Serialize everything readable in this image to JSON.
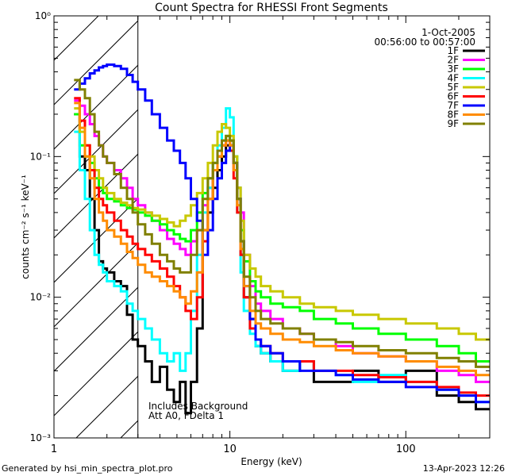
{
  "chart_data": {
    "type": "line",
    "title": "Count Spectra for RHESSI Front Segments",
    "xlabel": "Energy (keV)",
    "ylabel": "counts cm⁻² s⁻¹ keV⁻¹",
    "xscale": "log",
    "yscale": "log",
    "xlim": [
      1.0,
      300.0
    ],
    "ylim": [
      0.001,
      1.0
    ],
    "x_ticks": [
      "1",
      "10",
      "100"
    ],
    "y_ticks": [
      "10⁻³",
      "10⁻²",
      "10⁻¹",
      "10⁰"
    ],
    "legend_position": "top-right",
    "info_date": "1-Oct-2005",
    "info_time": "00:56:00 to 00:57:00",
    "annotation_line1": "Includes Background",
    "annotation_line2": "Att A0, FDelta 1",
    "hatched_region_upper_keV": 3.0,
    "footer_left": "Generated by hsi_min_spectra_plot.pro",
    "footer_right": "13-Apr-2023 12:26",
    "energy_keV": [
      1.3,
      1.4,
      1.5,
      1.6,
      1.7,
      1.8,
      1.9,
      2.0,
      2.2,
      2.4,
      2.6,
      2.8,
      3.0,
      3.3,
      3.6,
      4.0,
      4.4,
      4.8,
      5.2,
      5.6,
      6.0,
      6.5,
      7.0,
      7.5,
      8.0,
      8.5,
      9.0,
      9.5,
      10.0,
      10.5,
      11.0,
      11.5,
      12.0,
      13.0,
      14.0,
      15.0,
      17.0,
      20.0,
      25.0,
      30.0,
      40.0,
      50.0,
      70.0,
      100.0,
      150.0,
      200.0,
      250.0
    ],
    "series": [
      {
        "name": "1F",
        "color": "#000000",
        "values": [
          0.2,
          0.1,
          0.08,
          0.05,
          0.03,
          0.018,
          0.016,
          0.015,
          0.013,
          0.012,
          0.0075,
          0.005,
          0.0045,
          0.0035,
          0.0025,
          0.0032,
          0.0022,
          0.0018,
          0.0025,
          0.0015,
          0.0025,
          0.006,
          0.03,
          0.04,
          0.06,
          0.08,
          0.1,
          0.12,
          0.13,
          0.09,
          0.05,
          0.02,
          0.01,
          0.007,
          0.0045,
          0.004,
          0.0035,
          0.003,
          0.0035,
          0.0025,
          0.0025,
          0.003,
          0.0025,
          0.003,
          0.002,
          0.0018,
          0.0016
        ]
      },
      {
        "name": "2F",
        "color": "#ff00ff",
        "values": [
          0.25,
          0.23,
          0.2,
          0.17,
          0.14,
          0.12,
          0.1,
          0.09,
          0.08,
          0.07,
          0.06,
          0.05,
          0.045,
          0.04,
          0.035,
          0.03,
          0.026,
          0.024,
          0.022,
          0.02,
          0.025,
          0.03,
          0.045,
          0.06,
          0.08,
          0.1,
          0.12,
          0.13,
          0.12,
          0.09,
          0.06,
          0.04,
          0.02,
          0.012,
          0.009,
          0.008,
          0.007,
          0.006,
          0.0055,
          0.005,
          0.0045,
          0.004,
          0.0038,
          0.0035,
          0.003,
          0.0028,
          0.0025
        ]
      },
      {
        "name": "3F",
        "color": "#00ff00",
        "values": [
          0.2,
          0.12,
          0.1,
          0.09,
          0.07,
          0.06,
          0.055,
          0.05,
          0.048,
          0.045,
          0.043,
          0.042,
          0.04,
          0.038,
          0.035,
          0.033,
          0.03,
          0.028,
          0.026,
          0.025,
          0.03,
          0.04,
          0.055,
          0.07,
          0.09,
          0.11,
          0.13,
          0.14,
          0.13,
          0.1,
          0.06,
          0.03,
          0.018,
          0.013,
          0.011,
          0.01,
          0.009,
          0.0085,
          0.008,
          0.007,
          0.0065,
          0.006,
          0.0055,
          0.005,
          0.0045,
          0.004,
          0.0035
        ]
      },
      {
        "name": "4F",
        "color": "#00ffff",
        "values": [
          0.15,
          0.08,
          0.05,
          0.03,
          0.02,
          0.017,
          0.015,
          0.013,
          0.012,
          0.011,
          0.009,
          0.008,
          0.007,
          0.006,
          0.005,
          0.004,
          0.0035,
          0.004,
          0.003,
          0.004,
          0.008,
          0.02,
          0.04,
          0.06,
          0.09,
          0.12,
          0.16,
          0.22,
          0.19,
          0.1,
          0.04,
          0.015,
          0.008,
          0.0055,
          0.0045,
          0.004,
          0.0035,
          0.003,
          0.0035,
          0.003,
          0.0028,
          0.0025,
          0.0028,
          0.0025,
          0.0022,
          0.002,
          0.0018
        ]
      },
      {
        "name": "5F",
        "color": "#c8c800",
        "values": [
          0.22,
          0.15,
          0.12,
          0.1,
          0.08,
          0.07,
          0.06,
          0.055,
          0.05,
          0.047,
          0.045,
          0.043,
          0.042,
          0.04,
          0.038,
          0.036,
          0.034,
          0.032,
          0.035,
          0.038,
          0.045,
          0.055,
          0.07,
          0.09,
          0.12,
          0.15,
          0.17,
          0.16,
          0.14,
          0.1,
          0.06,
          0.035,
          0.02,
          0.016,
          0.014,
          0.012,
          0.011,
          0.01,
          0.009,
          0.0085,
          0.008,
          0.0075,
          0.007,
          0.0065,
          0.006,
          0.0055,
          0.005
        ]
      },
      {
        "name": "6F",
        "color": "#ff0000",
        "values": [
          0.26,
          0.18,
          0.12,
          0.08,
          0.06,
          0.05,
          0.045,
          0.04,
          0.035,
          0.03,
          0.027,
          0.024,
          0.022,
          0.02,
          0.018,
          0.016,
          0.014,
          0.012,
          0.01,
          0.008,
          0.007,
          0.01,
          0.025,
          0.05,
          0.08,
          0.1,
          0.12,
          0.13,
          0.11,
          0.07,
          0.04,
          0.02,
          0.01,
          0.006,
          0.005,
          0.0045,
          0.004,
          0.0035,
          0.0035,
          0.003,
          0.003,
          0.0028,
          0.0027,
          0.0025,
          0.0023,
          0.0021,
          0.002
        ]
      },
      {
        "name": "7F",
        "color": "#0000ff",
        "values": [
          0.3,
          0.33,
          0.36,
          0.39,
          0.41,
          0.43,
          0.44,
          0.45,
          0.44,
          0.42,
          0.38,
          0.34,
          0.3,
          0.25,
          0.2,
          0.16,
          0.13,
          0.11,
          0.09,
          0.07,
          0.05,
          0.035,
          0.02,
          0.03,
          0.05,
          0.07,
          0.09,
          0.11,
          0.12,
          0.09,
          0.05,
          0.025,
          0.012,
          0.007,
          0.005,
          0.0045,
          0.004,
          0.0035,
          0.003,
          0.003,
          0.0028,
          0.0026,
          0.0025,
          0.0023,
          0.0022,
          0.002,
          0.0018
        ]
      },
      {
        "name": "8F",
        "color": "#ff8c00",
        "values": [
          0.24,
          0.16,
          0.1,
          0.07,
          0.05,
          0.04,
          0.035,
          0.03,
          0.027,
          0.024,
          0.021,
          0.019,
          0.017,
          0.015,
          0.014,
          0.013,
          0.012,
          0.011,
          0.01,
          0.009,
          0.011,
          0.015,
          0.03,
          0.05,
          0.08,
          0.1,
          0.12,
          0.13,
          0.12,
          0.08,
          0.045,
          0.022,
          0.012,
          0.008,
          0.0065,
          0.006,
          0.0055,
          0.005,
          0.0048,
          0.0045,
          0.0042,
          0.004,
          0.0038,
          0.0035,
          0.0032,
          0.003,
          0.0028
        ]
      },
      {
        "name": "9F",
        "color": "#808000",
        "values": [
          0.35,
          0.3,
          0.26,
          0.2,
          0.15,
          0.12,
          0.1,
          0.09,
          0.075,
          0.06,
          0.05,
          0.04,
          0.033,
          0.028,
          0.024,
          0.02,
          0.018,
          0.016,
          0.015,
          0.015,
          0.02,
          0.03,
          0.05,
          0.07,
          0.09,
          0.11,
          0.13,
          0.14,
          0.13,
          0.09,
          0.05,
          0.025,
          0.014,
          0.01,
          0.008,
          0.007,
          0.0065,
          0.006,
          0.0055,
          0.005,
          0.0048,
          0.0045,
          0.0042,
          0.004,
          0.0037,
          0.0035,
          0.0032
        ]
      }
    ]
  }
}
